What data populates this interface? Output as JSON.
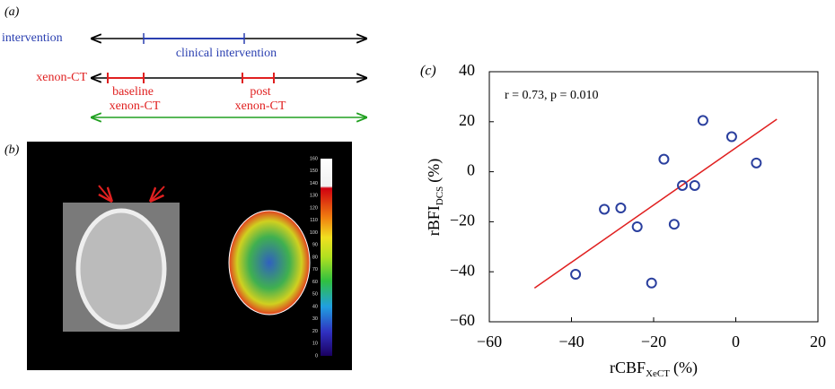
{
  "panel_a": {
    "label": "(a)",
    "row1_label": "intervention",
    "row1_segment": "clinical intervention",
    "row2_label": "xenon-CT",
    "baseline_line1": "baseline",
    "baseline_line2": "xenon-CT",
    "post_line1": "post",
    "post_line2": "xenon-CT"
  },
  "panel_b": {
    "label": "(b)",
    "colorbar_ticks": [
      160,
      150,
      140,
      130,
      120,
      110,
      100,
      90,
      80,
      70,
      60,
      50,
      40,
      30,
      20,
      10,
      0
    ]
  },
  "chart_data": {
    "type": "scatter",
    "panel_label": "(c)",
    "annotation": "r = 0.73, p = 0.010",
    "xlabel": {
      "main": "rCBF",
      "sub": "XeCT",
      "unit": "(%)"
    },
    "ylabel": {
      "main": "rBFI",
      "sub": "DCS",
      "unit": "(%)"
    },
    "x": [
      -39,
      -32,
      -28,
      -24,
      -17.5,
      -15,
      -20.5,
      -13,
      -10,
      -8,
      -1,
      5
    ],
    "values": [
      -41,
      -15,
      -14.5,
      -22,
      5,
      -21,
      -44.5,
      -5.5,
      -5.5,
      20.5,
      14,
      3.5
    ],
    "color": "#2a3f9e",
    "fit_line": {
      "x": [
        -49,
        10
      ],
      "y": [
        -46.5,
        21
      ],
      "color": "#e02020"
    },
    "xlim": [
      -60,
      20
    ],
    "ylim": [
      -60,
      40
    ],
    "xticks": [
      {
        "value": -60,
        "label": "−60"
      },
      {
        "value": -40,
        "label": "−40"
      },
      {
        "value": -20,
        "label": "−20"
      },
      0,
      20
    ],
    "yticks": [
      {
        "value": -60,
        "label": "−60"
      },
      {
        "value": -40,
        "label": "−40"
      },
      {
        "value": -20,
        "label": "−20"
      },
      0,
      20,
      40
    ]
  }
}
